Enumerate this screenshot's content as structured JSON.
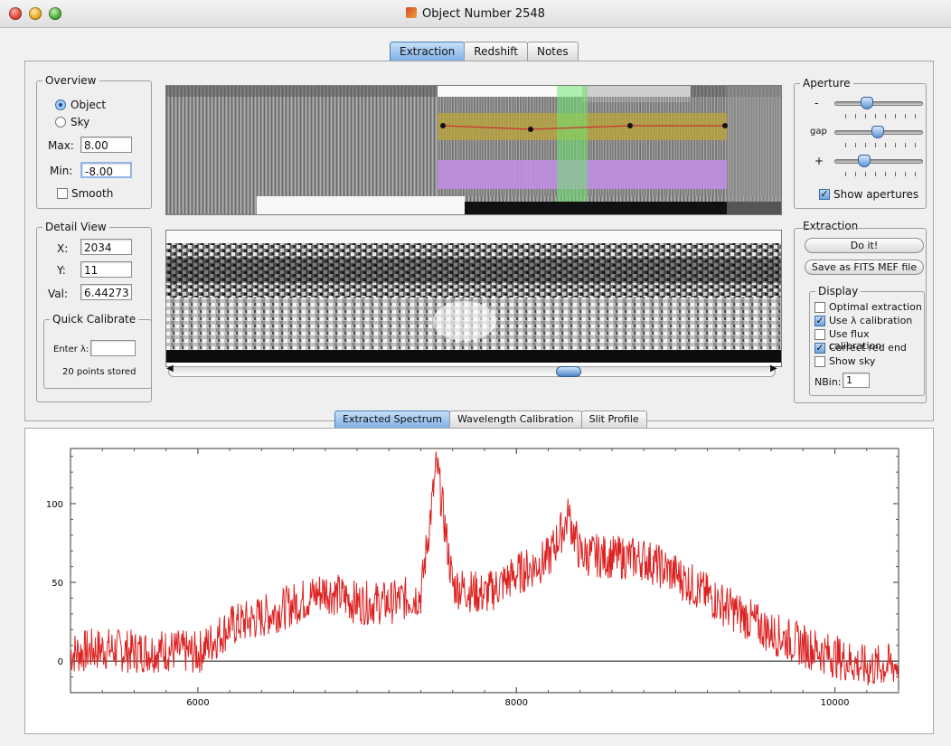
{
  "window": {
    "title": "Object Number 2548"
  },
  "main_tabs": [
    "Extraction",
    "Redshift",
    "Notes"
  ],
  "overview": {
    "legend": "Overview",
    "radio_object": "Object",
    "radio_sky": "Sky",
    "max_label": "Max:",
    "max_value": "8.00",
    "min_label": "Min:",
    "min_value": "-8.00",
    "smooth_label": "Smooth"
  },
  "aperture": {
    "legend": "Aperture",
    "minus_label": "-",
    "gap_label": "gap",
    "plus_label": "+",
    "show_apertures_label": "Show apertures"
  },
  "detail": {
    "legend": "Detail View",
    "x_label": "X:",
    "x_value": "2034",
    "y_label": "Y:",
    "y_value": "11",
    "val_label": "Val:",
    "val_value": "6.44273"
  },
  "quick_calibrate": {
    "legend": "Quick Calibrate",
    "enter_label": "Enter λ:",
    "points_text": "20 points stored"
  },
  "extraction": {
    "legend": "Extraction",
    "doit_label": "Do it!",
    "save_label": "Save as FITS MEF file"
  },
  "display": {
    "legend": "Display",
    "optimal": "Optimal extraction",
    "use_lambda": "Use λ calibration",
    "use_flux": "Use flux calibration",
    "correct_red": "Correct red end",
    "show_sky": "Show sky",
    "nbin_label": "NBin:",
    "nbin_value": "1"
  },
  "bottom_tabs": [
    "Extracted Spectrum",
    "Wavelength Calibration",
    "Slit Profile"
  ],
  "chart_data": {
    "type": "line",
    "xlim": [
      5200,
      10400
    ],
    "ylim": [
      -20,
      135
    ],
    "x_ticks": [
      "6000",
      "8000",
      "10000"
    ],
    "y_ticks": [
      "0",
      "50",
      "100"
    ],
    "zero_line": true,
    "line_color": "#dd2222",
    "series": [
      {
        "x": [
          5200,
          5400,
          5600,
          5800,
          6000,
          6200,
          6400,
          6600,
          6800,
          7000,
          7200,
          7400,
          7500,
          7600,
          7800,
          8000,
          8200,
          8330,
          8400,
          8600,
          8800,
          9000,
          9200,
          9400,
          9600,
          9800,
          10000,
          10200,
          10400
        ],
        "values": [
          5,
          8,
          6,
          7,
          5,
          22,
          28,
          36,
          45,
          37,
          37,
          42,
          125,
          48,
          42,
          55,
          65,
          92,
          68,
          66,
          65,
          55,
          42,
          30,
          18,
          10,
          3,
          -4,
          -2
        ]
      }
    ]
  }
}
